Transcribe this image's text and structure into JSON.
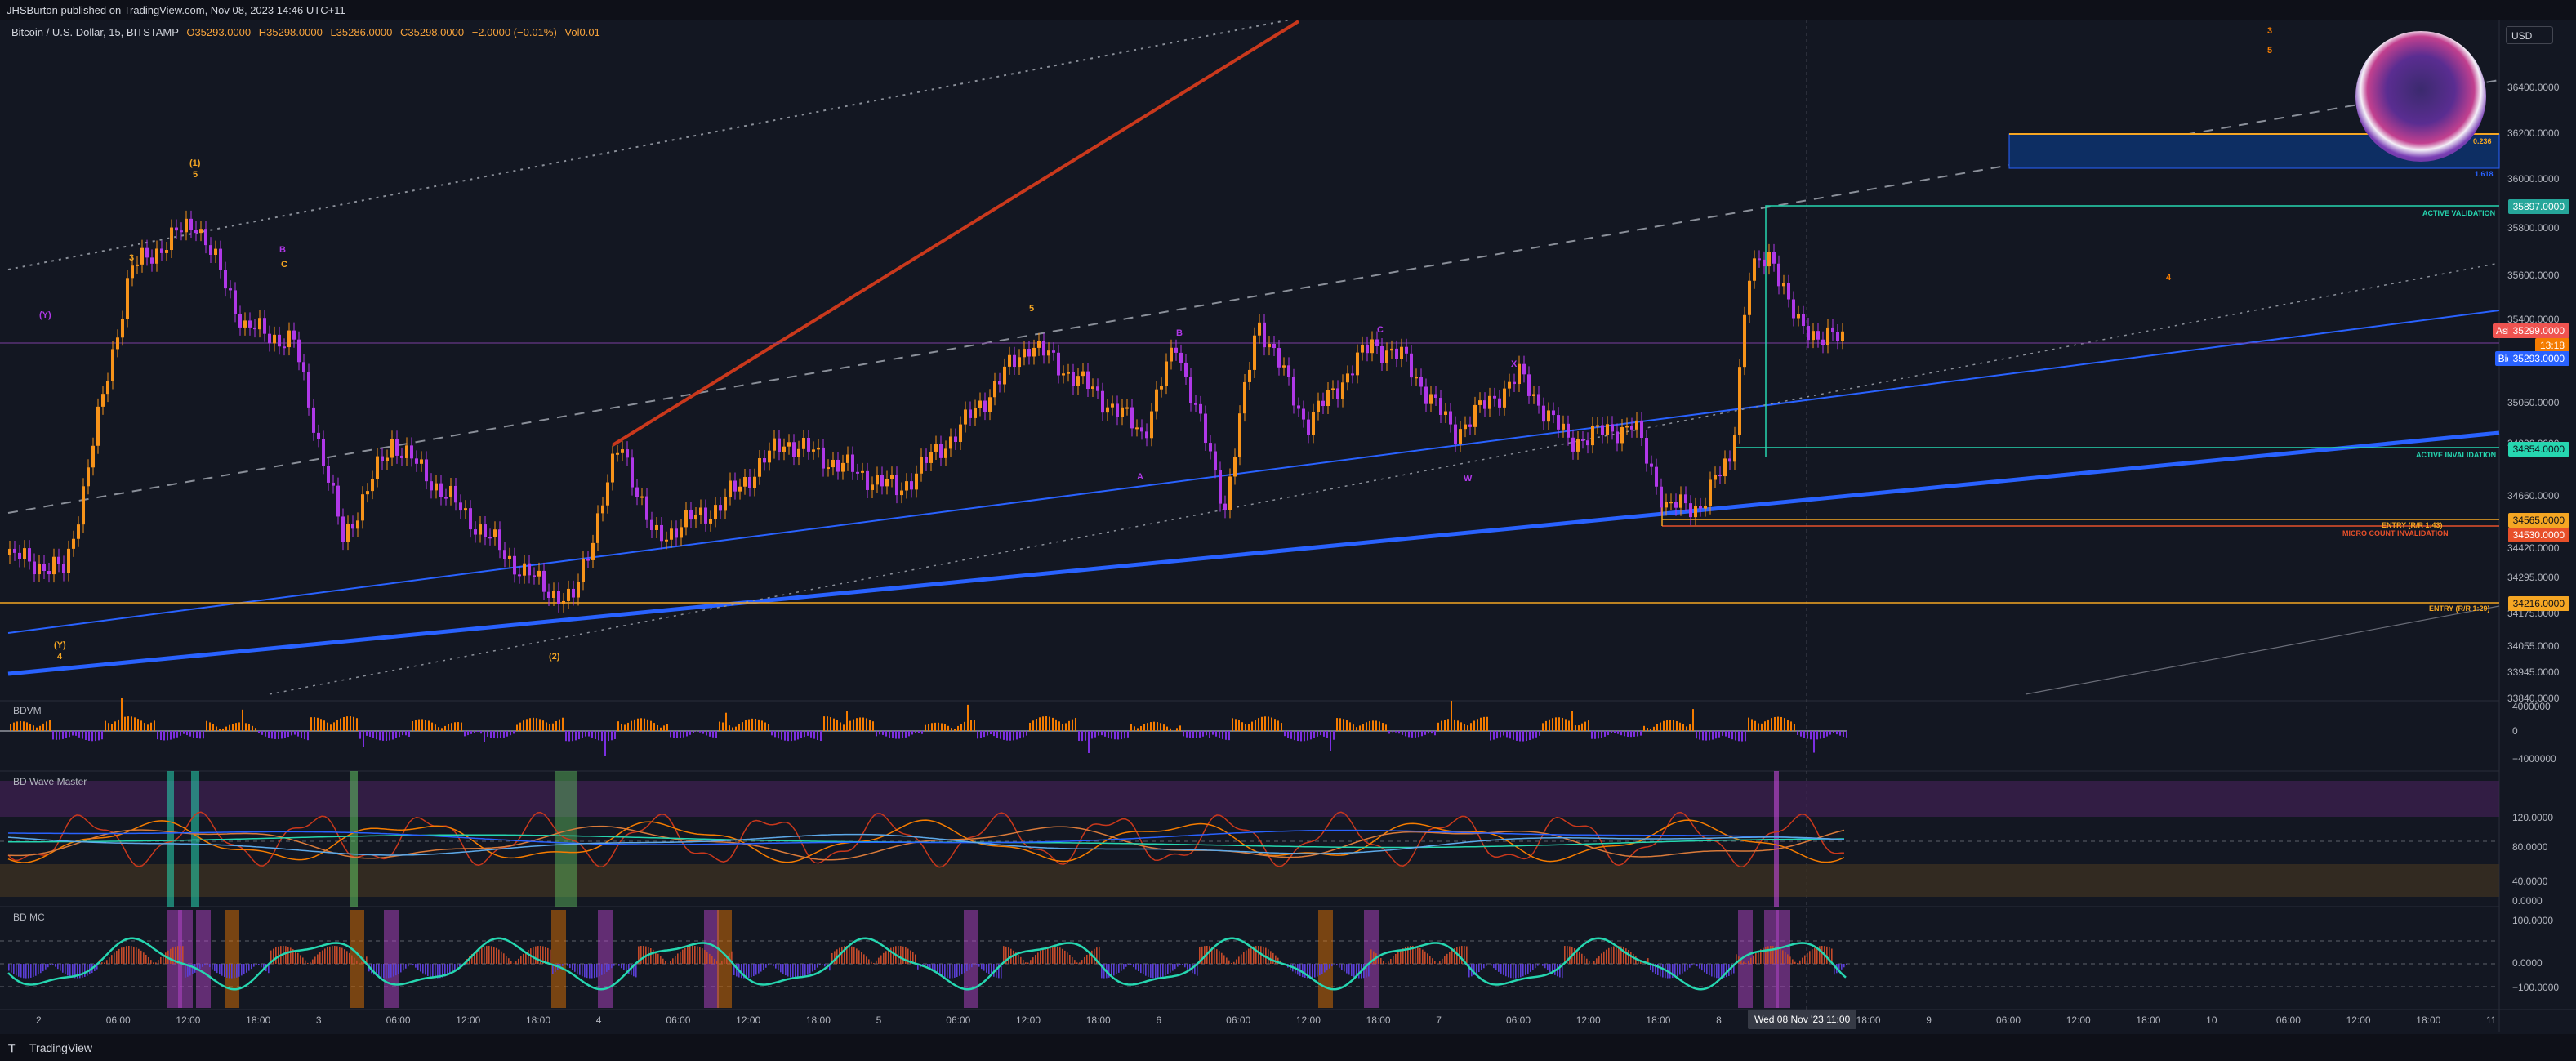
{
  "publisher": "JHSBurton published on TradingView.com, Nov 08, 2023 14:46 UTC+11",
  "legend": {
    "symbol": "Bitcoin / U.S. Dollar, 15, BITSTAMP",
    "open": "O35293.0000",
    "high": "H35298.0000",
    "low": "L35286.0000",
    "close": "C35298.0000",
    "change": "−2.0000 (−0.01%)",
    "volume": "Vol0.01"
  },
  "currency_button": "USD",
  "price_axis": [
    "36400.0000",
    "36200.0000",
    "36000.0000",
    "35800.0000",
    "35600.0000",
    "35400.0000",
    "35200.0000",
    "35050.0000",
    "34900.0000",
    "34660.0000",
    "34420.0000",
    "34295.0000",
    "34175.0000",
    "34055.0000",
    "33945.0000",
    "33840.0000"
  ],
  "price_tags": {
    "target": "35897.0000",
    "ask_label": "Ask",
    "ask": "35299.0000",
    "countdown": "13:18",
    "bid_label": "Bid",
    "bid": "35293.0000",
    "invalidation": "34854.0000",
    "entry1": "34565.0000",
    "micro": "34530.0000",
    "entry2": "34216.0000"
  },
  "annotations": {
    "active_validation": "ACTIVE VALIDATION",
    "active_invalidation": "ACTIVE INVALIDATION",
    "entry_1": "ENTRY (R/R 1:43)",
    "micro_invalidation": "MICRO COUNT INVALIDATION",
    "entry_2": "ENTRY (R/R 1:29)",
    "fib_0": "0.236",
    "fib_1": "1.618"
  },
  "panes": {
    "volume": {
      "title": "BDVM",
      "labels": [
        "4000000",
        "0",
        "−4000000"
      ]
    },
    "wave": {
      "title": "BD Wave Master",
      "labels": [
        "120.0000",
        "80.0000",
        "40.0000",
        "0.0000"
      ]
    },
    "mc": {
      "title": "BD MC",
      "labels": [
        "100.0000",
        "0.0000",
        "−100.0000"
      ]
    }
  },
  "time_axis": [
    "2",
    "06:00",
    "12:00",
    "18:00",
    "3",
    "06:00",
    "12:00",
    "18:00",
    "4",
    "06:00",
    "12:00",
    "18:00",
    "5",
    "06:00",
    "12:00",
    "18:00",
    "6",
    "06:00",
    "12:00",
    "18:00",
    "7",
    "06:00",
    "12:00",
    "18:00",
    "8",
    "06:00",
    "18:00",
    "9",
    "06:00",
    "12:00",
    "18:00",
    "10",
    "06:00",
    "12:00",
    "18:00",
    "11"
  ],
  "crosshair_time": "Wed 08 Nov '23   11:00",
  "footer_brand": "TradingView",
  "wave_labels": {
    "w1": "(1)",
    "w5": "5",
    "wB": "B",
    "wC": "C",
    "wY": "(Y)",
    "w4": "4",
    "w2": "(2)",
    "w3": "3",
    "wA": "A",
    "wX": "X",
    "wW": "W"
  },
  "colors": {
    "bg": "#131722",
    "up": "#f7931a",
    "down": "#b038e8",
    "blue": "#2962ff",
    "teal": "#26d6b0",
    "red": "#c9381c",
    "orange": "#f57c00"
  }
}
